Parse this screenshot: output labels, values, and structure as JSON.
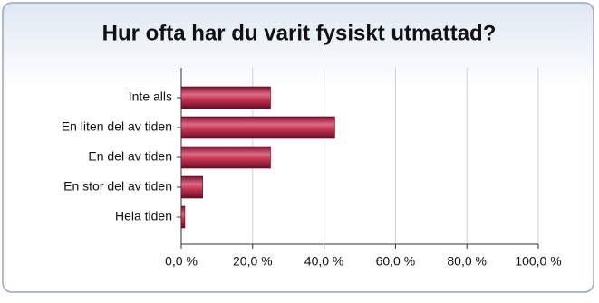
{
  "chart_data": {
    "type": "bar",
    "orientation": "horizontal",
    "title": "Hur ofta har du varit fysiskt utmattad?",
    "categories": [
      "Inte alls",
      "En liten del av tiden",
      "En del av tiden",
      "En stor del av tiden",
      "Hela tiden"
    ],
    "values": [
      25,
      43,
      25,
      6,
      1
    ],
    "color": "#c2324f",
    "xlim": [
      0,
      100
    ],
    "xticks": [
      {
        "value": 0,
        "label": "0,0 %"
      },
      {
        "value": 20,
        "label": "20,0 %"
      },
      {
        "value": 40,
        "label": "40,0 %"
      },
      {
        "value": 60,
        "label": "60,0 %"
      },
      {
        "value": 80,
        "label": "80,0 %"
      },
      {
        "value": 100,
        "label": "100,0 %"
      }
    ],
    "grid": true
  }
}
